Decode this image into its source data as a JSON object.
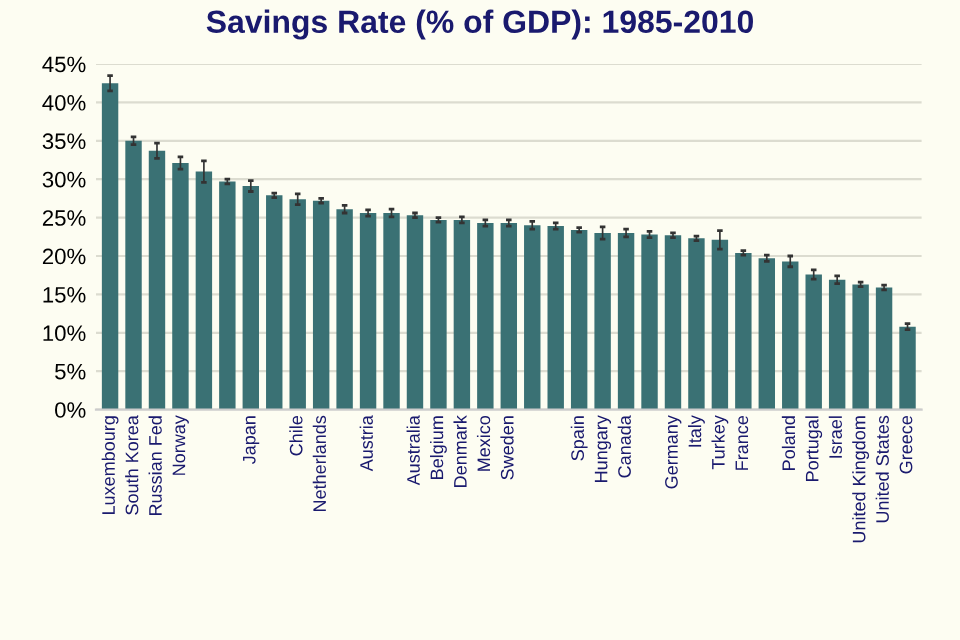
{
  "chart_data": {
    "type": "bar",
    "title": "Savings Rate (% of GDP): 1985-2010",
    "categories": [
      "Luxembourg",
      "South Korea",
      "Russian Fed",
      "Norway",
      null,
      null,
      "Japan",
      null,
      "Chile",
      "Netherlands",
      null,
      "Austria",
      null,
      "Australia",
      "Belgium",
      "Denmark",
      "Mexico",
      "Sweden",
      null,
      null,
      "Spain",
      "Hungary",
      "Canada",
      null,
      "Germany",
      "Italy",
      "Turkey",
      "France",
      null,
      "Poland",
      "Portugal",
      "Israel",
      "United Kingdom",
      "United States",
      "Greece"
    ],
    "values": [
      42.5,
      35.0,
      33.7,
      32.1,
      31.0,
      29.7,
      29.1,
      27.9,
      27.4,
      27.2,
      26.1,
      25.6,
      25.6,
      25.3,
      24.7,
      24.7,
      24.3,
      24.3,
      24.0,
      23.9,
      23.4,
      23.0,
      23.0,
      22.8,
      22.7,
      22.3,
      22.1,
      20.4,
      19.7,
      19.3,
      17.6,
      16.9,
      16.3,
      15.9,
      10.8
    ],
    "errors": [
      1.0,
      0.5,
      1.0,
      0.8,
      1.4,
      0.3,
      0.7,
      0.3,
      0.7,
      0.3,
      0.5,
      0.4,
      0.5,
      0.3,
      0.3,
      0.4,
      0.4,
      0.4,
      0.5,
      0.4,
      0.3,
      0.8,
      0.5,
      0.4,
      0.3,
      0.3,
      1.2,
      0.3,
      0.4,
      0.7,
      0.6,
      0.5,
      0.3,
      0.3,
      0.4
    ],
    "color": "#3a7174",
    "ylim": [
      0,
      45
    ],
    "yticks": [
      {
        "value": 0,
        "label": "0%"
      },
      {
        "value": 5,
        "label": "5%"
      },
      {
        "value": 10,
        "label": "10%"
      },
      {
        "value": 15,
        "label": "15%"
      },
      {
        "value": 20,
        "label": "20%"
      },
      {
        "value": 25,
        "label": "25%"
      },
      {
        "value": 30,
        "label": "30%"
      },
      {
        "value": 35,
        "label": "35%"
      },
      {
        "value": 40,
        "label": "40%"
      },
      {
        "value": 45,
        "label": "45%"
      }
    ],
    "grid": "y",
    "legend": false
  }
}
